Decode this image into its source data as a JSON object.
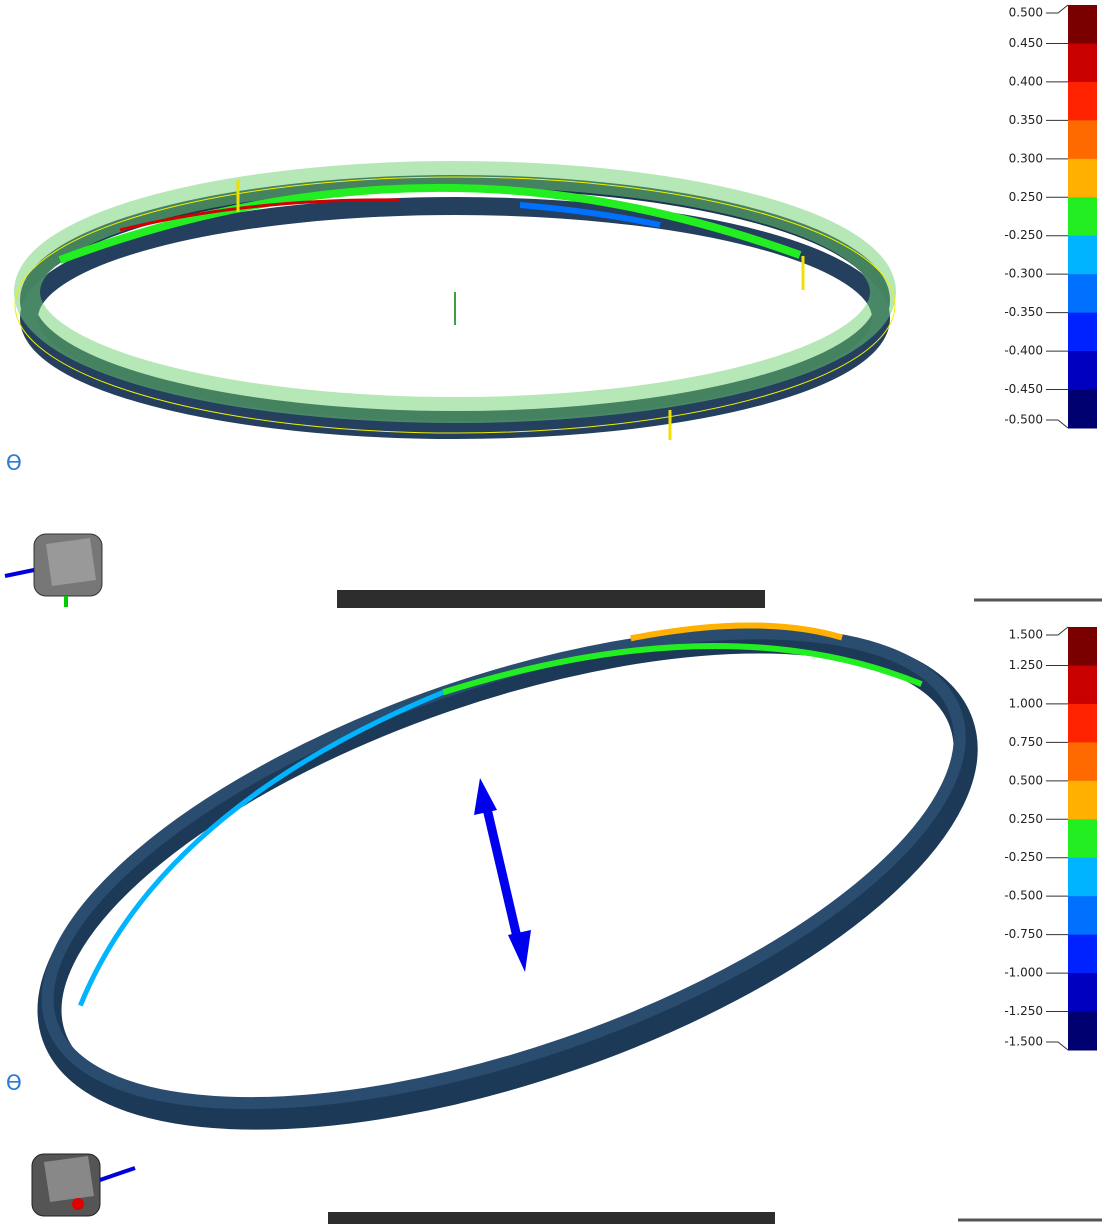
{
  "panels": [
    {
      "scale_labels": [
        "0.500",
        "0.450",
        "0.400",
        "0.350",
        "0.300",
        "0.250",
        "-0.250",
        "-0.300",
        "-0.350",
        "-0.400",
        "-0.450",
        "-0.500"
      ]
    },
    {
      "scale_labels": [
        "1.500",
        "1.250",
        "1.000",
        "0.750",
        "0.500",
        "0.250",
        "-0.250",
        "-0.500",
        "-0.750",
        "-1.000",
        "-1.250",
        "-1.500"
      ]
    }
  ]
}
